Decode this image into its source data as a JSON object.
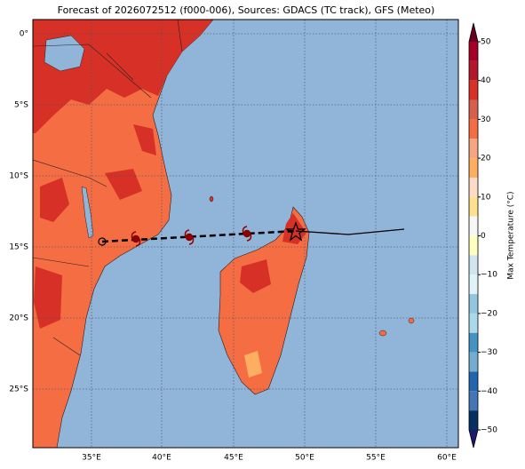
{
  "title": "Forecast of 2026072512 (f000-006), Sources: GDACS (TC track), GFS (Meteo)",
  "lat_labels": [
    "0°",
    "5°S",
    "10°S",
    "15°S",
    "20°S",
    "25°S"
  ],
  "lon_labels": [
    "35°E",
    "40°E",
    "45°E",
    "50°E",
    "55°E",
    "60°E"
  ],
  "colorbar": {
    "label": "Max Temperature (°C)",
    "ticks": [
      "50",
      "40",
      "30",
      "20",
      "10",
      "0",
      "−10",
      "−20",
      "−30",
      "−40",
      "−50"
    ]
  }
}
